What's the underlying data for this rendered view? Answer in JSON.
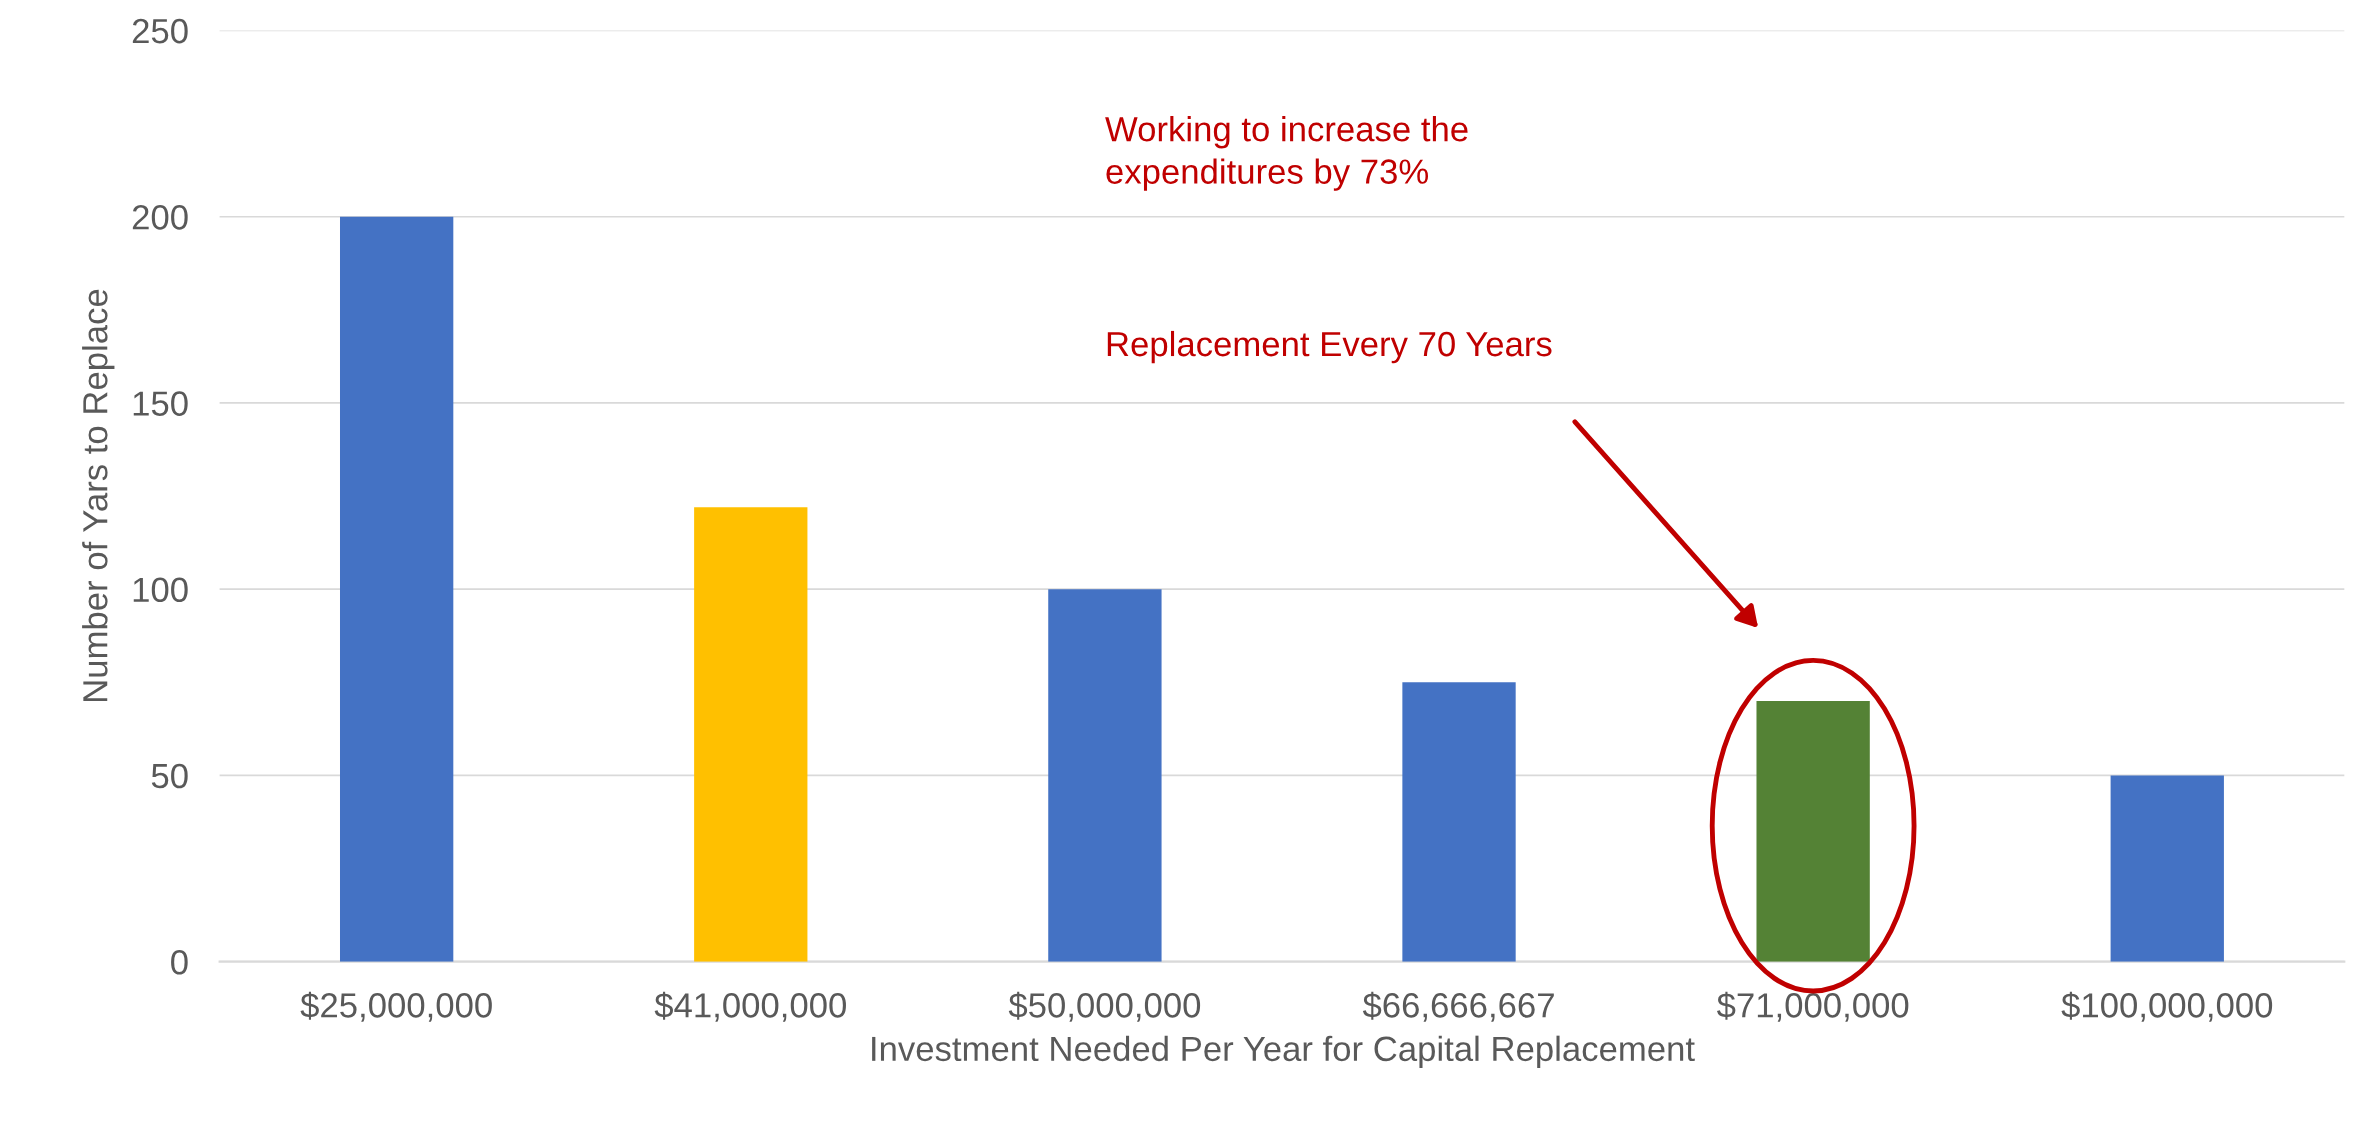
{
  "chart_data": {
    "type": "bar",
    "categories": [
      "$25,000,000",
      "$41,000,000",
      "$50,000,000",
      "$66,666,667",
      "$71,000,000",
      "$100,000,000"
    ],
    "values": [
      200,
      122,
      100,
      75,
      70,
      50
    ],
    "colors": [
      "#4472c4",
      "#ffc000",
      "#4472c4",
      "#4472c4",
      "#548235",
      "#4472c4"
    ],
    "xlabel": "Investment Needed Per Year for Capital Replacement",
    "ylabel": "Number of Yars to Replace",
    "ylim": [
      0,
      250
    ],
    "yticks": [
      0,
      50,
      100,
      150,
      200,
      250
    ],
    "grid": "y",
    "legend": false,
    "annotations": [
      "Working to increase the\nexpenditures by 73%",
      "Replacement Every 70 Years"
    ]
  }
}
